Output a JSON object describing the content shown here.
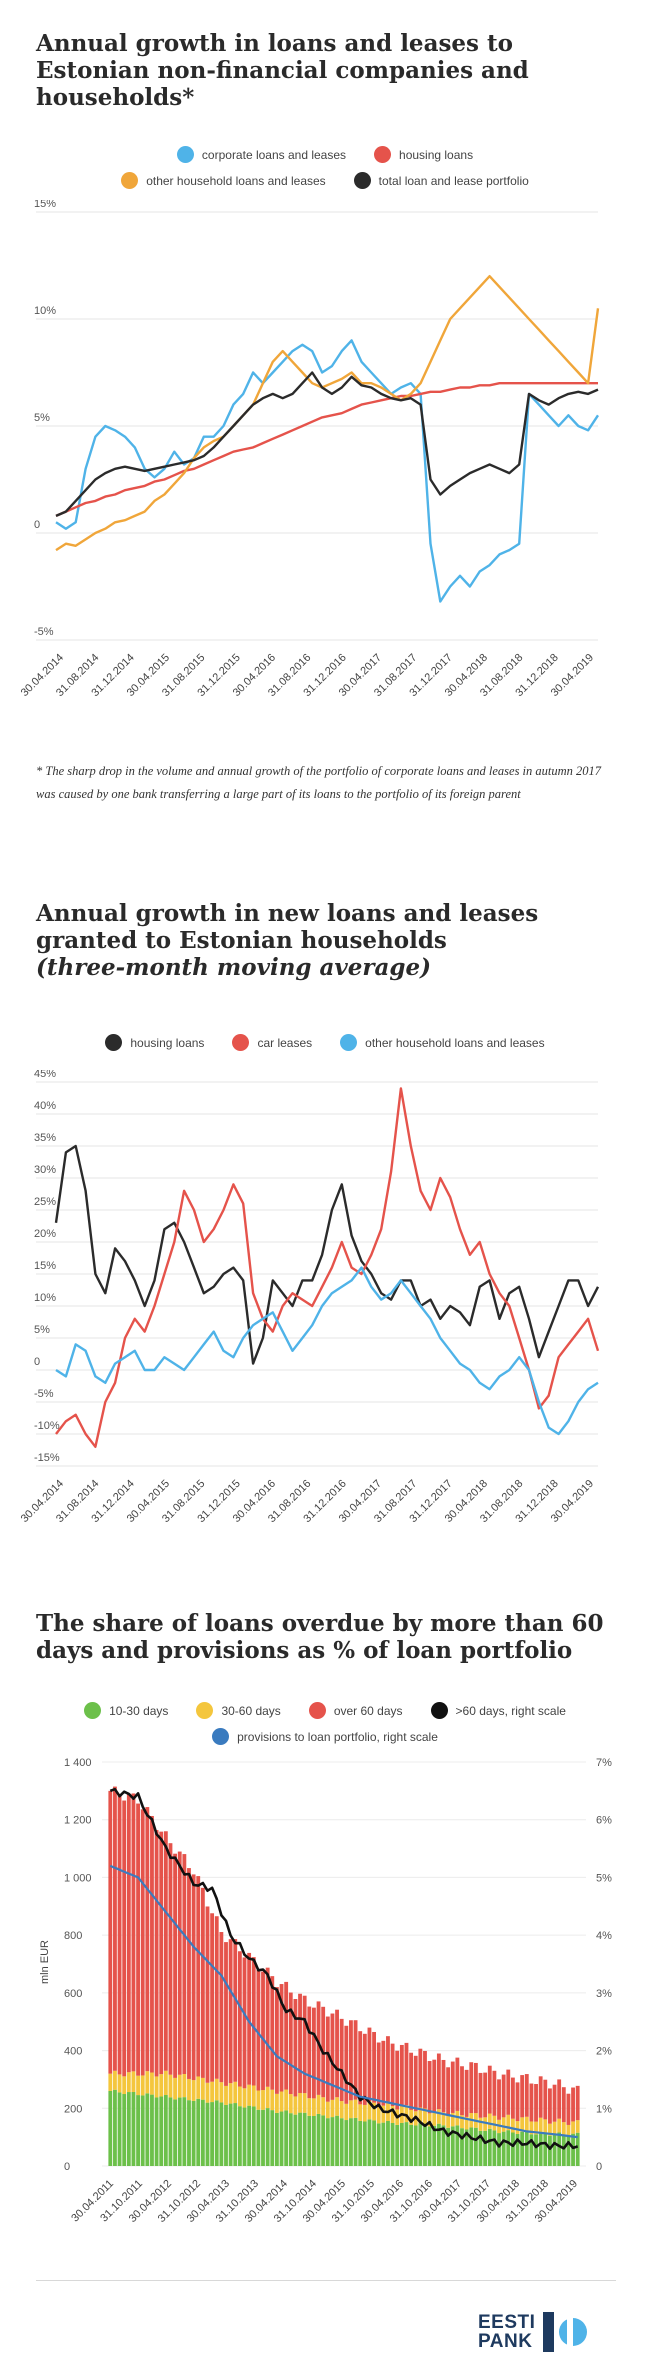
{
  "charts": [
    {
      "title": "Annual growth in loans and leases to Estonian non-financial companies and households*",
      "legend": [
        {
          "label": "corporate loans and leases",
          "color": "#4fb3e8"
        },
        {
          "label": "housing loans",
          "color": "#e5534b"
        },
        {
          "label": "other household loans and leases",
          "color": "#f0a63a"
        },
        {
          "label": "total loan and lease portfolio",
          "color": "#2b2b2b"
        }
      ],
      "yticks": [
        "15%",
        "10%",
        "5%",
        "0",
        "-5%"
      ],
      "xticks": [
        "30.04.2014",
        "31.08.2014",
        "31.12.2014",
        "30.04.2015",
        "31.08.2015",
        "31.12.2015",
        "30.04.2016",
        "31.08.2016",
        "31.12.2016",
        "30.04.2017",
        "31.08.2017",
        "31.12.2017",
        "30.04.2018",
        "31.08.2018",
        "31.12.2018",
        "30.04.2019"
      ],
      "footnote": "* The sharp drop in the volume and annual growth of the portfolio of corporate loans and leases in autumn 2017 was caused by one bank transferring a large part of its loans to the portfolio of its foreign parent"
    },
    {
      "title": "Annual growth in new loans and leases granted to Estonian households",
      "subtitle": "(three-month moving average)",
      "legend": [
        {
          "label": "housing loans",
          "color": "#2b2b2b"
        },
        {
          "label": "car leases",
          "color": "#e5534b"
        },
        {
          "label": "other household loans and leases",
          "color": "#4fb3e8"
        }
      ],
      "yticks": [
        "45%",
        "40%",
        "35%",
        "30%",
        "25%",
        "20%",
        "15%",
        "10%",
        "5%",
        "0",
        "-5%",
        "-10%",
        "-15%"
      ],
      "xticks": [
        "30.04.2014",
        "31.08.2014",
        "31.12.2014",
        "30.04.2015",
        "31.08.2015",
        "31.12.2015",
        "30.04.2016",
        "31.08.2016",
        "31.12.2016",
        "30.04.2017",
        "31.08.2017",
        "31.12.2017",
        "30.04.2018",
        "31.08.2018",
        "31.12.2018",
        "30.04.2019"
      ]
    },
    {
      "title": "The share of loans overdue by more than 60 days and provisions as % of loan portfolio",
      "legend": [
        {
          "label": "10-30 days",
          "color": "#6cc04a"
        },
        {
          "label": "30-60 days",
          "color": "#f4c63d"
        },
        {
          "label": "over 60 days",
          "color": "#e5534b"
        },
        {
          "label": ">60 days, right scale",
          "color": "#111111"
        },
        {
          "label": "provisions to loan portfolio, right scale",
          "color": "#3a7bbf"
        }
      ],
      "yticks_left": [
        "1 400",
        "1 200",
        "1 000",
        "800",
        "600",
        "400",
        "200",
        "0"
      ],
      "yticks_right": [
        "7%",
        "6%",
        "5%",
        "4%",
        "3%",
        "2%",
        "1%",
        "0"
      ],
      "ylabel": "mln EUR",
      "xticks": [
        "30.04.2011",
        "31.10.2011",
        "30.04.2012",
        "31.10.2012",
        "30.04.2013",
        "31.10.2013",
        "30.04.2014",
        "31.10.2014",
        "30.04.2015",
        "31.10.2015",
        "30.04.2016",
        "31.10.2016",
        "30.04.2017",
        "31.10.2017",
        "30.04.2018",
        "31.10.2018",
        "30.04.2019"
      ]
    }
  ],
  "logo": {
    "line1": "EESTI",
    "line2": "PANK"
  },
  "chart_data": [
    {
      "type": "line",
      "ylim": [
        -5,
        15
      ],
      "x_start": "2014-01",
      "x_end": "2019-06",
      "series": [
        {
          "name": "corporate loans and leases",
          "color": "#4fb3e8",
          "values": [
            0.5,
            0.2,
            0.5,
            3.0,
            4.5,
            5.0,
            4.8,
            4.5,
            4.0,
            3.0,
            2.6,
            3.0,
            3.8,
            3.2,
            3.5,
            4.5,
            4.5,
            5.0,
            6.0,
            6.5,
            7.5,
            7.0,
            7.5,
            8.0,
            8.5,
            8.8,
            8.5,
            7.5,
            7.8,
            8.5,
            9.0,
            8.0,
            7.5,
            7.0,
            6.5,
            6.8,
            7.0,
            6.5,
            -0.5,
            -3.2,
            -2.5,
            -2.0,
            -2.5,
            -1.8,
            -1.5,
            -1.0,
            -0.8,
            -0.5,
            6.5,
            6.0,
            5.5,
            5.0,
            5.5,
            5.0,
            4.8,
            5.5
          ]
        },
        {
          "name": "housing loans",
          "color": "#e5534b",
          "values": [
            0.8,
            1.0,
            1.2,
            1.4,
            1.5,
            1.7,
            1.8,
            2.0,
            2.1,
            2.2,
            2.4,
            2.5,
            2.7,
            2.9,
            3.0,
            3.2,
            3.4,
            3.6,
            3.8,
            3.9,
            4.0,
            4.2,
            4.4,
            4.6,
            4.8,
            5.0,
            5.2,
            5.4,
            5.5,
            5.6,
            5.8,
            6.0,
            6.1,
            6.2,
            6.3,
            6.4,
            6.4,
            6.5,
            6.6,
            6.6,
            6.7,
            6.8,
            6.8,
            6.9,
            6.9,
            7.0,
            7.0,
            7.0,
            7.0,
            7.0,
            7.0,
            7.0,
            7.0,
            7.0,
            7.0,
            7.0
          ]
        },
        {
          "name": "other household loans and leases",
          "color": "#f0a63a",
          "values": [
            -0.8,
            -0.5,
            -0.6,
            -0.3,
            0.0,
            0.2,
            0.5,
            0.6,
            0.8,
            1.0,
            1.5,
            1.8,
            2.3,
            2.8,
            3.5,
            4.0,
            4.3,
            4.5,
            5.0,
            5.5,
            6.0,
            7.0,
            8.0,
            8.5,
            8.0,
            7.5,
            7.0,
            6.8,
            7.0,
            7.2,
            7.5,
            7.0,
            7.0,
            6.8,
            6.5,
            6.2,
            6.5,
            7.0,
            8.0,
            9.0,
            10.0,
            10.5,
            11.0,
            11.5,
            12.0,
            11.5,
            11.0,
            10.5,
            10.0,
            9.5,
            9.0,
            8.5,
            8.0,
            7.5,
            7.0,
            10.5
          ]
        },
        {
          "name": "total loan and lease portfolio",
          "color": "#2b2b2b",
          "values": [
            0.8,
            1.0,
            1.5,
            2.0,
            2.5,
            2.8,
            3.0,
            3.1,
            3.0,
            2.9,
            3.0,
            3.1,
            3.2,
            3.3,
            3.4,
            3.6,
            4.0,
            4.5,
            5.0,
            5.5,
            6.0,
            6.3,
            6.5,
            6.3,
            6.5,
            7.0,
            7.5,
            6.8,
            6.5,
            6.8,
            7.3,
            6.9,
            6.8,
            6.5,
            6.3,
            6.2,
            6.3,
            6.0,
            2.5,
            1.8,
            2.2,
            2.5,
            2.8,
            3.0,
            3.2,
            3.0,
            2.8,
            3.2,
            6.5,
            6.2,
            6.0,
            6.3,
            6.5,
            6.6,
            6.5,
            6.7
          ]
        }
      ]
    },
    {
      "type": "line",
      "ylim": [
        -15,
        45
      ],
      "x_start": "2014-01",
      "x_end": "2019-06",
      "series": [
        {
          "name": "housing loans",
          "color": "#2b2b2b",
          "values": [
            23,
            34,
            35,
            28,
            15,
            12,
            19,
            17,
            14,
            10,
            14,
            22,
            23,
            20,
            16,
            12,
            13,
            15,
            16,
            14,
            1,
            5,
            14,
            12,
            10,
            14,
            14,
            18,
            25,
            29,
            21,
            17,
            15,
            12,
            11,
            14,
            14,
            10,
            11,
            8,
            10,
            9,
            7,
            13,
            14,
            8,
            12,
            13,
            8,
            2,
            6,
            10,
            14,
            14,
            10,
            13
          ]
        },
        {
          "name": "car leases",
          "color": "#e5534b",
          "values": [
            -10,
            -8,
            -7,
            -10,
            -12,
            -5,
            -2,
            5,
            8,
            6,
            10,
            15,
            20,
            28,
            25,
            20,
            22,
            25,
            29,
            26,
            12,
            8,
            6,
            10,
            12,
            11,
            10,
            13,
            16,
            20,
            16,
            15,
            18,
            22,
            31,
            44,
            35,
            28,
            25,
            30,
            27,
            22,
            18,
            20,
            15,
            12,
            10,
            5,
            0,
            -6,
            -4,
            2,
            4,
            6,
            8,
            3
          ]
        },
        {
          "name": "other household loans and leases",
          "color": "#4fb3e8",
          "values": [
            0,
            -1,
            4,
            3,
            -1,
            -2,
            1,
            2,
            3,
            0,
            0,
            2,
            1,
            0,
            2,
            4,
            6,
            3,
            2,
            5,
            7,
            8,
            9,
            6,
            3,
            5,
            7,
            10,
            12,
            13,
            14,
            16,
            13,
            11,
            12,
            14,
            12,
            10,
            8,
            5,
            3,
            1,
            0,
            -2,
            -3,
            -1,
            0,
            2,
            0,
            -5,
            -9,
            -10,
            -8,
            -5,
            -3,
            -2
          ]
        }
      ]
    },
    {
      "type": "bar",
      "ylim_left": [
        0,
        1400
      ],
      "ylim_right": [
        0,
        7
      ],
      "x_start": "2011-01",
      "x_end": "2019-06",
      "stack_series": [
        "10-30 days",
        "30-60 days",
        "over 60 days"
      ],
      "series": [
        {
          "name": "over 60 days",
          "anchors": [
            [
              0,
              980
            ],
            [
              6,
              950
            ],
            [
              12,
              820
            ],
            [
              18,
              720
            ],
            [
              24,
              520
            ],
            [
              30,
              450
            ],
            [
              36,
              380
            ],
            [
              42,
              330
            ],
            [
              48,
              300
            ],
            [
              54,
              260
            ],
            [
              60,
              220
            ],
            [
              66,
              200
            ],
            [
              72,
              180
            ],
            [
              78,
              170
            ],
            [
              84,
              150
            ],
            [
              90,
              140
            ],
            [
              96,
              130
            ],
            [
              101,
              110
            ]
          ]
        },
        {
          "name": "30-60 days",
          "anchors": [
            [
              0,
              60
            ],
            [
              12,
              80
            ],
            [
              24,
              70
            ],
            [
              36,
              70
            ],
            [
              48,
              60
            ],
            [
              60,
              60
            ],
            [
              72,
              45
            ],
            [
              84,
              50
            ],
            [
              96,
              45
            ],
            [
              101,
              40
            ]
          ]
        },
        {
          "name": "10-30 days",
          "anchors": [
            [
              0,
              260
            ],
            [
              12,
              240
            ],
            [
              24,
              220
            ],
            [
              36,
              190
            ],
            [
              48,
              170
            ],
            [
              60,
              150
            ],
            [
              72,
              140
            ],
            [
              84,
              120
            ],
            [
              96,
              110
            ],
            [
              101,
              110
            ]
          ]
        },
        {
          "name": ">60 days, right scale",
          "axis": "right",
          "anchors": [
            [
              0,
              6.5
            ],
            [
              6,
              6.4
            ],
            [
              10,
              5.8
            ],
            [
              12,
              5.5
            ],
            [
              18,
              4.9
            ],
            [
              22,
              4.8
            ],
            [
              26,
              4.0
            ],
            [
              30,
              3.6
            ],
            [
              34,
              3.3
            ],
            [
              38,
              2.7
            ],
            [
              42,
              2.5
            ],
            [
              46,
              2.0
            ],
            [
              50,
              1.6
            ],
            [
              54,
              1.2
            ],
            [
              58,
              1.0
            ],
            [
              62,
              0.9
            ],
            [
              66,
              0.8
            ],
            [
              72,
              0.6
            ],
            [
              78,
              0.5
            ],
            [
              84,
              0.4
            ],
            [
              90,
              0.4
            ],
            [
              96,
              0.35
            ],
            [
              101,
              0.35
            ]
          ]
        },
        {
          "name": "provisions to loan portfolio, right scale",
          "axis": "right",
          "anchors": [
            [
              0,
              5.2
            ],
            [
              6,
              5.0
            ],
            [
              12,
              4.4
            ],
            [
              18,
              3.8
            ],
            [
              24,
              3.3
            ],
            [
              30,
              2.5
            ],
            [
              36,
              1.9
            ],
            [
              42,
              1.6
            ],
            [
              48,
              1.4
            ],
            [
              54,
              1.2
            ],
            [
              60,
              1.1
            ],
            [
              66,
              1.0
            ],
            [
              72,
              0.9
            ],
            [
              78,
              0.8
            ],
            [
              84,
              0.7
            ],
            [
              90,
              0.6
            ],
            [
              96,
              0.55
            ],
            [
              101,
              0.5
            ]
          ]
        }
      ]
    }
  ]
}
